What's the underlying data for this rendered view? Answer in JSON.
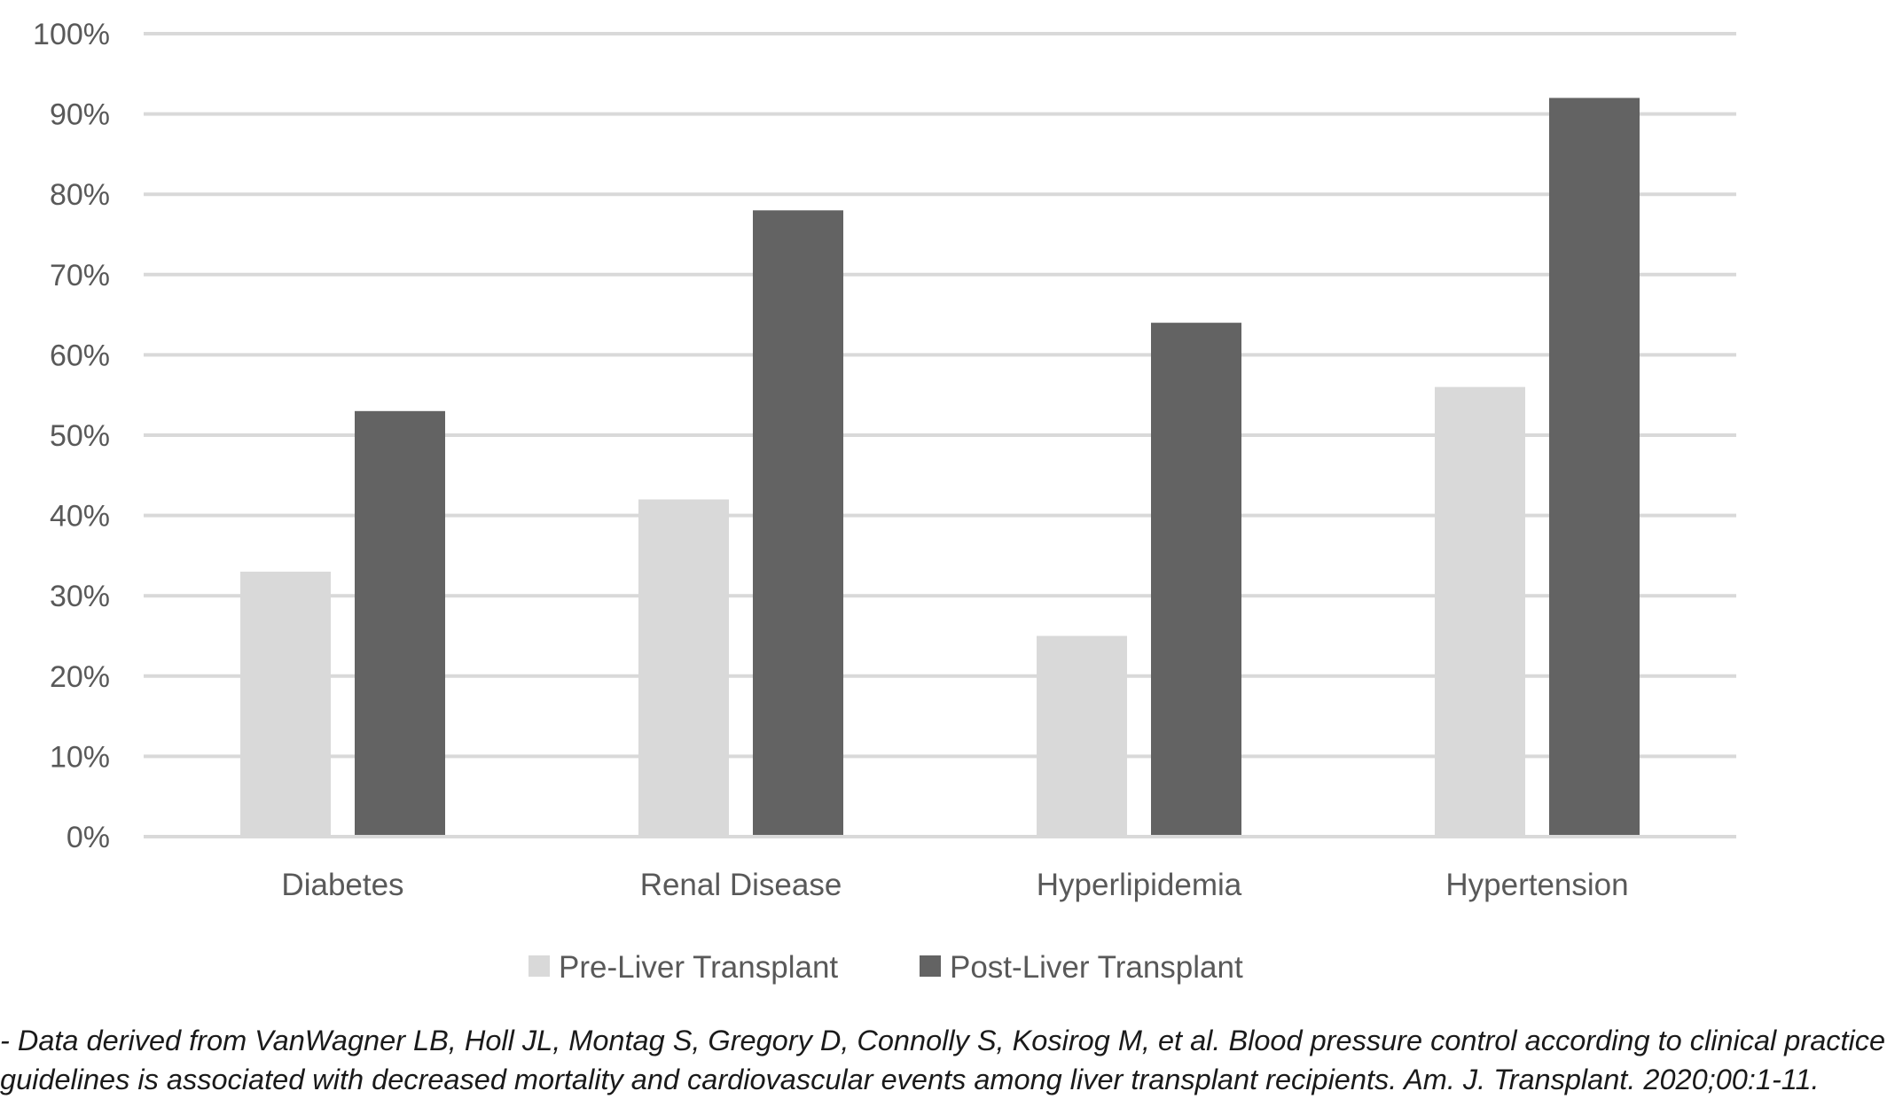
{
  "chart_data": {
    "type": "bar",
    "categories": [
      "Diabetes",
      "Renal Disease",
      "Hyperlipidemia",
      "Hypertension"
    ],
    "series": [
      {
        "name": "Pre-Liver Transplant",
        "values": [
          33,
          42,
          25,
          56
        ],
        "color": "#d9d9d9"
      },
      {
        "name": "Post-Liver Transplant",
        "values": [
          53,
          78,
          64,
          92
        ],
        "color": "#636363"
      }
    ],
    "yticks": [
      "0%",
      "10%",
      "20%",
      "30%",
      "40%",
      "50%",
      "60%",
      "70%",
      "80%",
      "90%",
      "100%"
    ],
    "ylim": [
      0,
      100
    ],
    "y_unit": "%",
    "grid": true,
    "gridline_color": "#d9d9d9",
    "legend_position": "bottom"
  },
  "caption": {
    "line1": "- Data derived from VanWagner LB, Holl JL, Montag S, Gregory D, Connolly S, Kosirog M, et al. Blood pressure control according to clinical practice",
    "line2": "guidelines is associated with decreased mortality and cardiovascular events among liver transplant recipients. Am. J. Transplant. 2020;00:1-11."
  }
}
